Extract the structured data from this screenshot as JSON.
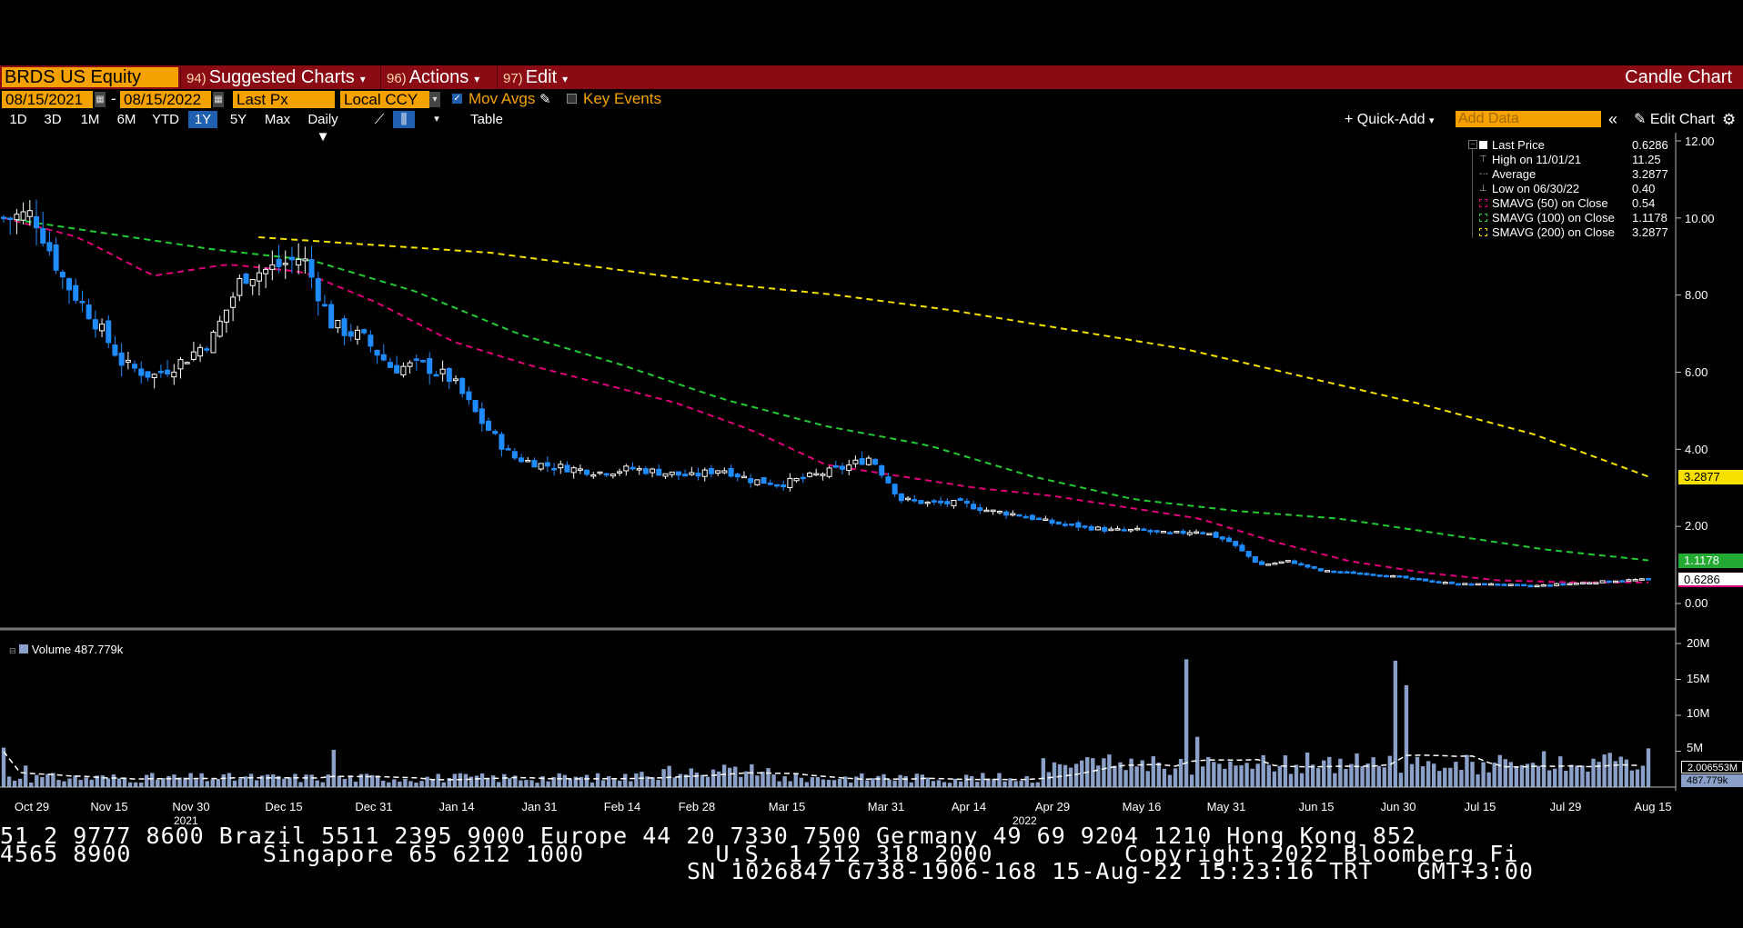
{
  "title_bar": {
    "ticker": "BRDS US Equity",
    "menus": [
      {
        "num": "94)",
        "label": "Suggested Charts"
      },
      {
        "num": "96)",
        "label": "Actions"
      },
      {
        "num": "97)",
        "label": "Edit"
      }
    ],
    "chart_type": "Candle Chart"
  },
  "settings": {
    "start_date": "08/15/2021",
    "end_date": "08/15/2022",
    "date_sep": "-",
    "price_field": "Last Px",
    "currency": "Local CCY",
    "mov_avgs_label": "Mov Avgs",
    "key_events_label": "Key Events"
  },
  "toolbar": {
    "periods": [
      "1D",
      "3D",
      "1M",
      "6M",
      "YTD",
      "1Y",
      "5Y",
      "Max"
    ],
    "selected_period": "1Y",
    "frequency": "Daily",
    "table_label": "Table",
    "quick_add": "Quick-Add",
    "add_data_placeholder": "Add Data",
    "edit_chart": "Edit Chart"
  },
  "legend": [
    {
      "label": "Last Price",
      "value": "0.6286"
    },
    {
      "label": "High on 11/01/21",
      "value": "11.25"
    },
    {
      "label": "Average",
      "value": "3.2877"
    },
    {
      "label": "Low on 06/30/22",
      "value": "0.40"
    },
    {
      "label": "SMAVG (50)  on Close",
      "value": "0.54"
    },
    {
      "label": "SMAVG (100)  on Close",
      "value": "1.1178"
    },
    {
      "label": "SMAVG (200)  on Close",
      "value": "3.2877"
    }
  ],
  "price_tags": {
    "sma200": "3.2877",
    "sma100": "1.1178",
    "last": "0.6286"
  },
  "volume": {
    "label": "Volume",
    "value": "487.779k",
    "tag_avg": "2.006553M",
    "tag_last": "487.779k"
  },
  "volume_axis": [
    "20M",
    "15M",
    "10M",
    "5M"
  ],
  "bottom_ticker": {
    "line1": "51 2 9777 8600 Brazil 5511 2395 9000 Europe 44 20 7330 7500 Germany 49 69 9204 1210 Hong Kong 852",
    "line2": "4565 8900         Singapore 65 6212 1000         U.S. 1 212 318 2000         Copyright 2022 Bloomberg Fi",
    "line3": "SN 1026847 G738-1906-168 15-Aug-22 15:23:16 TRT   GMT+3:00"
  },
  "chart_data": {
    "type": "candlestick",
    "price_axis": {
      "ticks": [
        "12.00",
        "10.00",
        "8.00",
        "6.00",
        "4.00",
        "2.00",
        "0.00"
      ],
      "ylim": [
        0,
        12
      ]
    },
    "x_labels": [
      "Oct 29",
      "Nov 15",
      "Nov 30",
      "Dec 15",
      "Dec 31",
      "Jan 14",
      "Jan 31",
      "Feb 14",
      "Feb 28",
      "Mar 15",
      "Mar 31",
      "Apr 14",
      "Apr 29",
      "May 16",
      "May 31",
      "Jun 15",
      "Jun 30",
      "Jul 15",
      "Jul 29",
      "Aug 15"
    ],
    "year_labels": [
      "2021",
      "2022"
    ],
    "close_path": [
      10.0,
      10.1,
      8.4,
      7.4,
      6.2,
      5.9,
      6.3,
      6.9,
      8.5,
      8.7,
      9.0,
      7.2,
      6.9,
      6.1,
      6.2,
      5.8,
      4.7,
      3.8,
      3.6,
      3.5,
      3.4,
      3.5,
      3.4,
      3.3,
      3.5,
      3.2,
      3.1,
      3.3,
      3.5,
      3.8,
      2.7,
      2.6,
      2.6,
      2.4,
      2.3,
      2.1,
      2.0,
      1.9,
      1.9,
      1.8,
      1.9,
      1.6,
      1.0,
      1.1,
      0.85,
      0.8,
      0.75,
      0.65,
      0.55,
      0.5,
      0.5,
      0.45,
      0.5,
      0.55,
      0.6,
      0.63
    ],
    "sma_50": [
      10.0,
      9.5,
      8.5,
      8.8,
      8.6,
      7.8,
      6.8,
      6.2,
      5.7,
      5.2,
      4.5,
      3.6,
      3.3,
      3.0,
      2.8,
      2.5,
      2.2,
      1.6,
      1.1,
      0.8,
      0.6,
      0.55,
      0.55
    ],
    "sma_100": [
      10.0,
      9.6,
      9.2,
      8.9,
      8.1,
      7.0,
      6.2,
      5.3,
      4.6,
      4.1,
      3.3,
      2.7,
      2.4,
      2.2,
      1.8,
      1.4,
      1.12
    ],
    "sma_200": [
      9.5,
      9.3,
      9.1,
      8.7,
      8.3,
      8.0,
      7.6,
      7.1,
      6.6,
      5.9,
      5.2,
      4.4,
      3.29
    ],
    "volume_axis": {
      "ticks": [
        "20M",
        "15M",
        "10M",
        "5M"
      ],
      "ylim": [
        0,
        20
      ]
    }
  }
}
